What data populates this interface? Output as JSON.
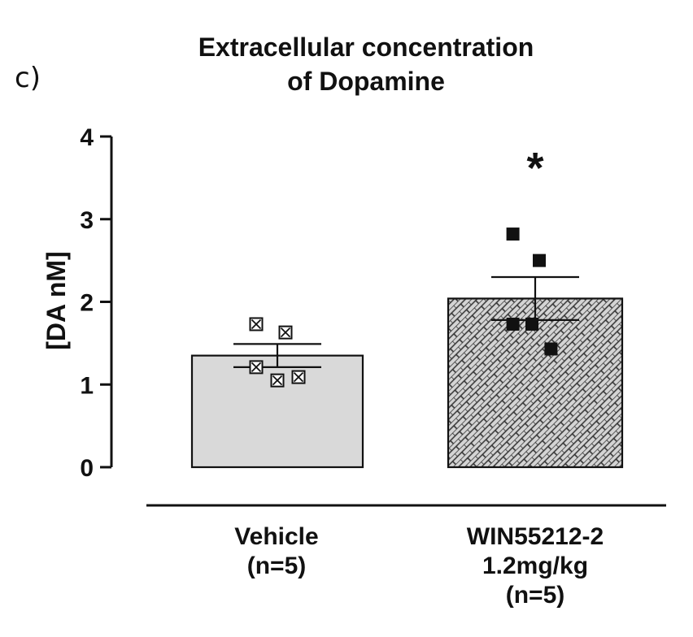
{
  "panel_label": "c)",
  "chart_data": {
    "type": "bar",
    "title_lines": [
      "Extracellular concentration",
      "of Dopamine"
    ],
    "ylabel": "[DA nM]",
    "ylim": [
      0,
      4
    ],
    "yticks": [
      "0",
      "1",
      "2",
      "3",
      "4"
    ],
    "categories": [
      {
        "lines": [
          "Vehicle",
          "(n=5)"
        ]
      },
      {
        "lines": [
          "WIN55212-2",
          "1.2mg/kg",
          "(n=5)"
        ]
      }
    ],
    "values": [
      1.35,
      2.04
    ],
    "sem": [
      0.14,
      0.26
    ],
    "points": [
      [
        1.73,
        1.63,
        1.21,
        1.05,
        1.09
      ],
      [
        2.82,
        2.5,
        1.73,
        1.73,
        1.43
      ]
    ],
    "significance": [
      "",
      "*"
    ],
    "colors": {
      "bar_fill": "#d9d9d9",
      "axis": "#111111"
    }
  }
}
